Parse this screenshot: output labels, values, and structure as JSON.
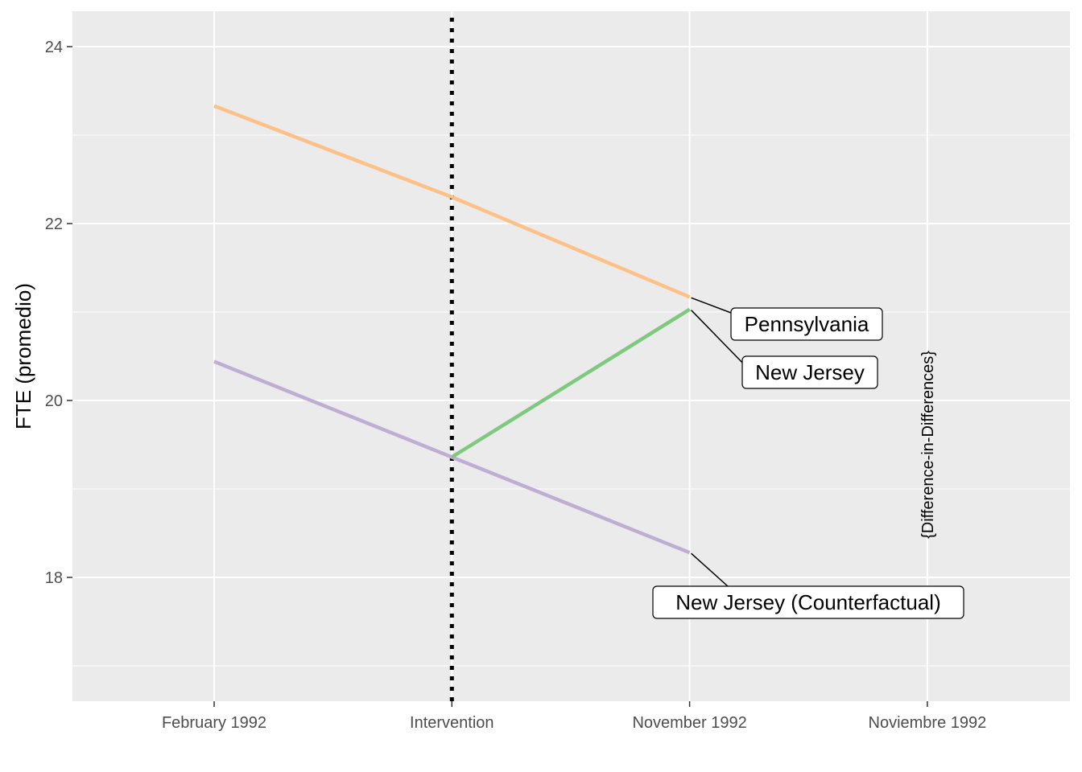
{
  "chart_data": {
    "type": "line",
    "title": "",
    "xlabel": "",
    "ylabel": "FTE (promedio)",
    "x_categories": [
      "February 1992",
      "Intervention",
      "November 1992",
      "Noviembre 1992"
    ],
    "ylim": [
      16.6,
      24.4
    ],
    "y_ticks": [
      18,
      20,
      22,
      24
    ],
    "y_tick_labels": [
      "18",
      "20",
      "22",
      "24"
    ],
    "grid": true,
    "legend": "none (direct labels)",
    "intervention_line": {
      "x": "Intervention",
      "style": "dotted",
      "color": "#000000"
    },
    "series": [
      {
        "name": "Pennsylvania",
        "color": "#FDC086",
        "points": [
          {
            "x": "February 1992",
            "y": 23.33
          },
          {
            "x": "Intervention",
            "y": 22.3
          },
          {
            "x": "November 1992",
            "y": 21.17
          }
        ]
      },
      {
        "name": "New Jersey",
        "color": "#7FC97F",
        "points": [
          {
            "x": "Intervention",
            "y": 19.36
          },
          {
            "x": "November 1992",
            "y": 21.03
          }
        ]
      },
      {
        "name": "New Jersey (Counterfactual)",
        "color": "#BEAED4",
        "points": [
          {
            "x": "February 1992",
            "y": 20.44
          },
          {
            "x": "Intervention",
            "y": 19.36
          },
          {
            "x": "November 1992",
            "y": 18.28
          }
        ]
      }
    ],
    "annotations": [
      {
        "text": "{Difference-in-Differences}",
        "x": "Noviembre 1992",
        "y": 19.5,
        "rotation": -90
      }
    ]
  }
}
